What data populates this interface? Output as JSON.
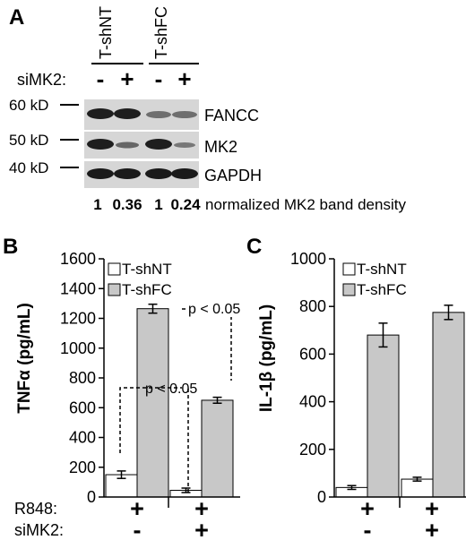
{
  "panel_a": {
    "label": "A",
    "groups": [
      "T-shNT",
      "T-shFC"
    ],
    "row_label": "siMK2:",
    "signs": [
      "-",
      "+",
      "-",
      "+"
    ],
    "markers": [
      "60 kD",
      "50 kD",
      "40 kD"
    ],
    "bands": [
      "FANCC",
      "MK2",
      "GAPDH"
    ],
    "density_values": [
      "1",
      "0.36",
      "1",
      "0.24"
    ],
    "density_label": "normalized MK2 band density"
  },
  "bottom_table": {
    "row1_label": "R848:",
    "row1_signs": [
      "+",
      "+"
    ],
    "row2_label": "siMK2:",
    "row2_signs": [
      "-",
      "+"
    ]
  },
  "colors": {
    "T-shNT": "#ffffff",
    "T-shFC": "#c8c8c8",
    "axis": "#000000"
  },
  "chart_data": [
    {
      "panel": "B",
      "type": "bar",
      "ylabel": "TNFα (pg/mL)",
      "ylim": [
        0,
        1600
      ],
      "yticks": [
        0,
        200,
        400,
        600,
        800,
        1000,
        1200,
        1400,
        1600
      ],
      "yticklabels": [
        "0",
        "200",
        "400",
        "600",
        "800",
        "1000",
        "1200",
        "1400",
        "1600"
      ],
      "categories": [
        "R848 +, siMK2 -",
        "R848 +, siMK2 +"
      ],
      "series": [
        {
          "name": "T-shNT",
          "values": [
            150,
            45
          ],
          "errors": [
            25,
            15
          ]
        },
        {
          "name": "T-shFC",
          "values": [
            1265,
            650
          ],
          "errors": [
            30,
            20
          ]
        }
      ],
      "annotations": [
        "p < 0.05",
        "p < 0.05"
      ],
      "legend": "top-left",
      "grid": false
    },
    {
      "panel": "C",
      "type": "bar",
      "ylabel": "IL-1β (pg/mL)",
      "ylim": [
        0,
        1000
      ],
      "yticks": [
        0,
        200,
        400,
        600,
        800,
        1000
      ],
      "yticklabels": [
        "0",
        "200",
        "400",
        "600",
        "800",
        "1000"
      ],
      "categories": [
        "R848 +, siMK2 -",
        "R848 +, siMK2 +"
      ],
      "series": [
        {
          "name": "T-shNT",
          "values": [
            40,
            75
          ],
          "errors": [
            8,
            8
          ]
        },
        {
          "name": "T-shFC",
          "values": [
            680,
            775
          ],
          "errors": [
            50,
            30
          ]
        }
      ],
      "legend": "top-left",
      "grid": false
    }
  ]
}
